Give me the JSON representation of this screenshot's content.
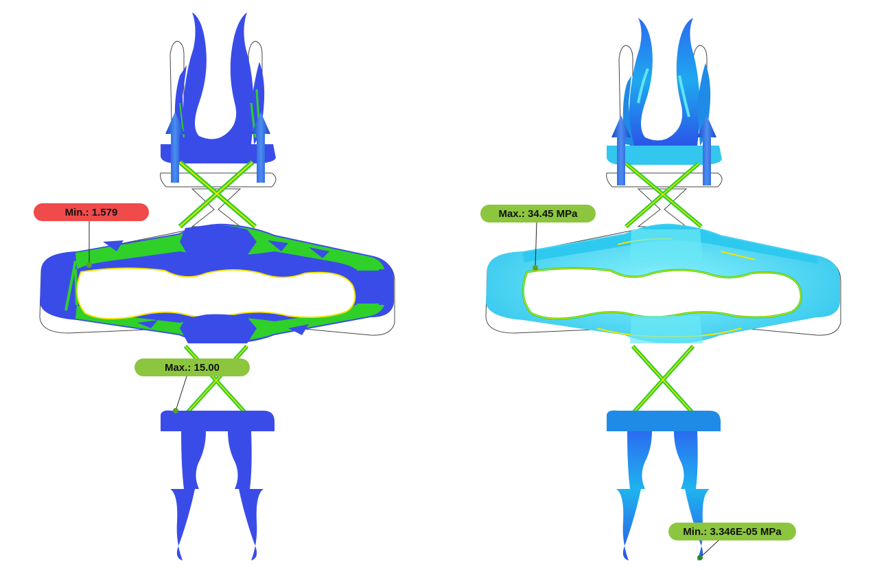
{
  "colors": {
    "deep_blue": "#3a4ce8",
    "arrow_blue": "#1a5fdc",
    "arrow_blue_light": "#4d8cf0",
    "green": "#2fd02a",
    "yellow": "#f4e300",
    "light_cyan": "#5ee6f5",
    "cyan": "#2ec9ee",
    "mid_blue": "#1f8be6",
    "outline": "#444444",
    "min_badge": "#f04a4a",
    "max_badge": "#8cc63f",
    "leader": "#222222"
  },
  "left_panel": {
    "min_label": "Min.: 1.579",
    "max_label": "Max.: 15.00"
  },
  "right_panel": {
    "max_label": "Max.: 34.45 MPa",
    "min_label": "Min.: 3.346E-05 MPa"
  }
}
